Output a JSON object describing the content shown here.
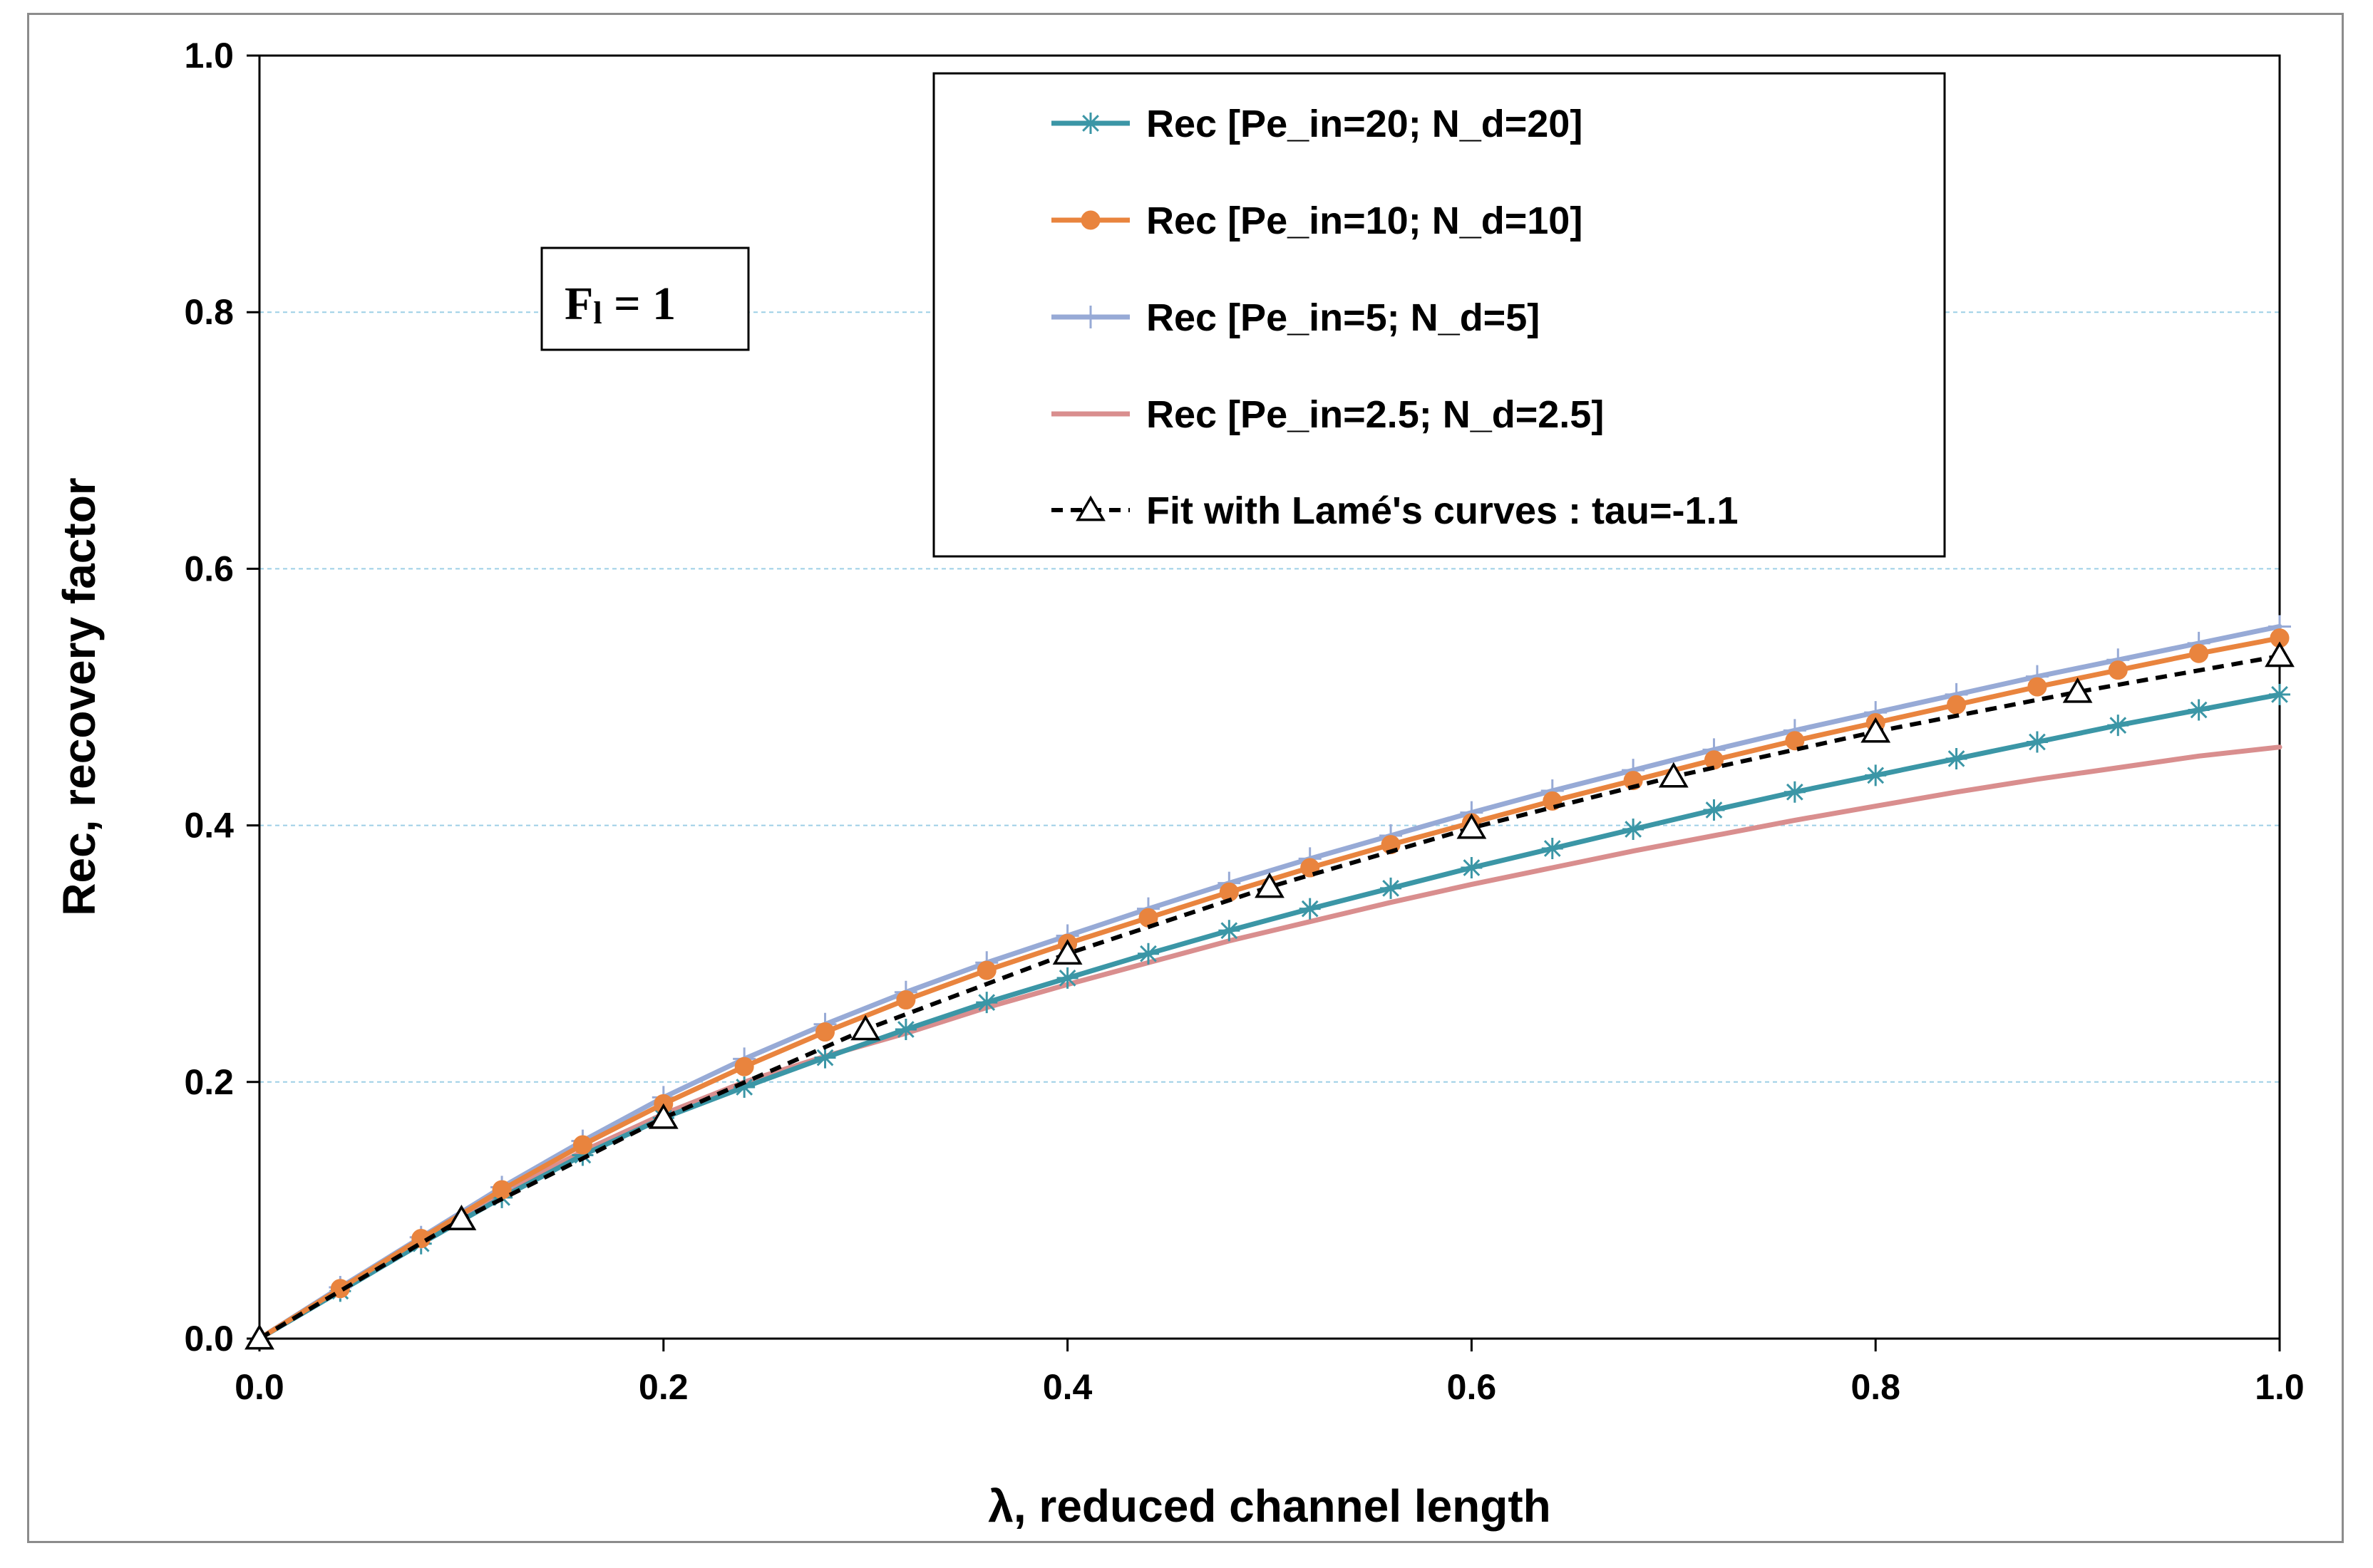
{
  "chart_data": {
    "type": "line",
    "title": "",
    "xlabel": "λ, reduced channel length",
    "ylabel": "Rec, recovery factor",
    "xlim": [
      0.0,
      1.0
    ],
    "ylim": [
      0.0,
      1.0
    ],
    "x_ticks": [
      "0.0",
      "0.2",
      "0.4",
      "0.6",
      "0.8",
      "1.0"
    ],
    "y_ticks": [
      "0.0",
      "0.2",
      "0.4",
      "0.6",
      "0.8",
      "1.0"
    ],
    "grid": "horizontal dotted",
    "legend_position": "top-right",
    "annotation": {
      "symbol": "F",
      "subscript": "l",
      "rest": " = 1"
    },
    "series": [
      {
        "name": "Rec  [Pe_in=20; N_d=20]",
        "color": "#3b96a6",
        "marker": "asterisk",
        "dashed": false,
        "x": [
          0,
          0.04,
          0.08,
          0.12,
          0.16,
          0.2,
          0.24,
          0.28,
          0.32,
          0.36,
          0.4,
          0.44,
          0.48,
          0.52,
          0.56,
          0.6,
          0.64,
          0.68,
          0.72,
          0.76,
          0.8,
          0.84,
          0.88,
          0.92,
          0.96,
          1.0
        ],
        "values": [
          0,
          0.037,
          0.074,
          0.11,
          0.143,
          0.172,
          0.196,
          0.219,
          0.241,
          0.262,
          0.281,
          0.3,
          0.318,
          0.335,
          0.351,
          0.367,
          0.382,
          0.397,
          0.412,
          0.426,
          0.439,
          0.452,
          0.465,
          0.478,
          0.49,
          0.502
        ]
      },
      {
        "name": "Rec  [Pe_in=10; N_d=10]",
        "color": "#e9843e",
        "marker": "circle",
        "dashed": false,
        "x": [
          0,
          0.04,
          0.08,
          0.12,
          0.16,
          0.2,
          0.24,
          0.28,
          0.32,
          0.36,
          0.4,
          0.44,
          0.48,
          0.52,
          0.56,
          0.6,
          0.64,
          0.68,
          0.72,
          0.76,
          0.8,
          0.84,
          0.88,
          0.92,
          0.96,
          1.0
        ],
        "values": [
          0,
          0.039,
          0.078,
          0.116,
          0.151,
          0.183,
          0.212,
          0.239,
          0.264,
          0.287,
          0.308,
          0.328,
          0.348,
          0.367,
          0.385,
          0.402,
          0.419,
          0.435,
          0.451,
          0.466,
          0.48,
          0.494,
          0.508,
          0.521,
          0.534,
          0.546
        ]
      },
      {
        "name": "Rec  [Pe_in=5; N_d=5]",
        "color": "#97aad6",
        "marker": "plus",
        "dashed": false,
        "x": [
          0,
          0.04,
          0.08,
          0.12,
          0.16,
          0.2,
          0.24,
          0.28,
          0.32,
          0.36,
          0.4,
          0.44,
          0.48,
          0.52,
          0.56,
          0.6,
          0.64,
          0.68,
          0.72,
          0.76,
          0.8,
          0.84,
          0.88,
          0.92,
          0.96,
          1.0
        ],
        "values": [
          0,
          0.04,
          0.079,
          0.118,
          0.154,
          0.188,
          0.218,
          0.245,
          0.27,
          0.293,
          0.314,
          0.335,
          0.355,
          0.374,
          0.392,
          0.41,
          0.427,
          0.443,
          0.459,
          0.474,
          0.488,
          0.502,
          0.516,
          0.529,
          0.542,
          0.555
        ]
      },
      {
        "name": "Rec  [Pe_in=2.5; N_d=2.5]",
        "color": "#d98e8e",
        "marker": "none",
        "dashed": false,
        "x": [
          0,
          0.04,
          0.08,
          0.12,
          0.16,
          0.2,
          0.24,
          0.28,
          0.32,
          0.36,
          0.4,
          0.44,
          0.48,
          0.52,
          0.56,
          0.6,
          0.64,
          0.68,
          0.72,
          0.76,
          0.8,
          0.84,
          0.88,
          0.92,
          0.96,
          1.0
        ],
        "values": [
          0,
          0.039,
          0.078,
          0.113,
          0.146,
          0.175,
          0.2,
          0.22,
          0.238,
          0.258,
          0.276,
          0.293,
          0.31,
          0.325,
          0.34,
          0.354,
          0.367,
          0.38,
          0.392,
          0.404,
          0.415,
          0.426,
          0.436,
          0.445,
          0.454,
          0.461
        ]
      },
      {
        "name": "Fit with Lamé's curves : tau=-1.1",
        "color": "#000000",
        "marker": "triangle",
        "dashed": true,
        "x": [
          0,
          0.1,
          0.2,
          0.3,
          0.4,
          0.5,
          0.6,
          0.7,
          0.8,
          0.9,
          1.0
        ],
        "values": [
          0,
          0.093,
          0.172,
          0.241,
          0.3,
          0.352,
          0.398,
          0.438,
          0.473,
          0.504,
          0.532
        ]
      }
    ]
  }
}
